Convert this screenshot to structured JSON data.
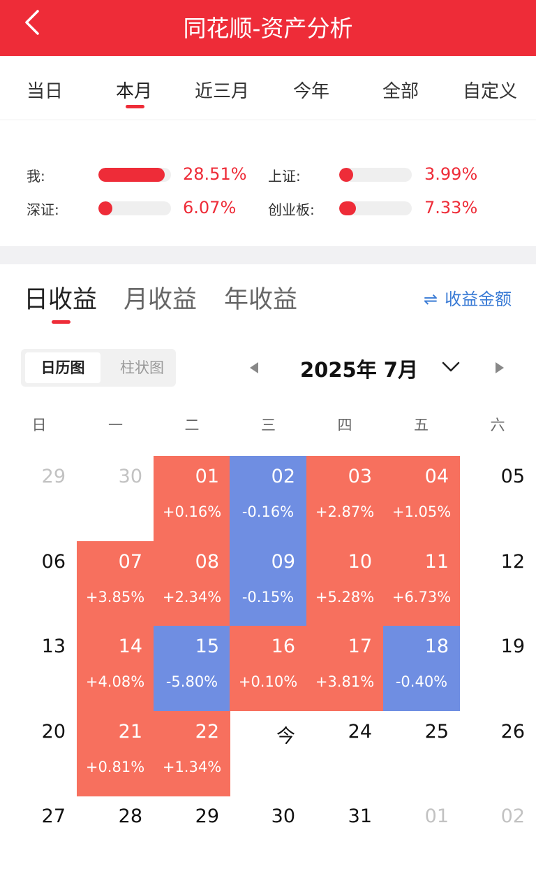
{
  "header": {
    "title": "同花顺-资产分析"
  },
  "period_tabs": [
    "当日",
    "本月",
    "近三月",
    "今年",
    "全部",
    "自定义"
  ],
  "comparison": {
    "me": {
      "label": "我:",
      "value": "28.51%",
      "fraction": 0.95
    },
    "sh": {
      "label": "上证:",
      "value": "3.99%",
      "fraction": 0.13
    },
    "sz": {
      "label": "深证:",
      "value": "6.07%",
      "fraction": 0.2
    },
    "cyb": {
      "label": "创业板:",
      "value": "7.33%",
      "fraction": 0.24
    }
  },
  "return_tabs": [
    "日收益",
    "月收益",
    "年收益"
  ],
  "amount_toggle": {
    "icon": "swap-icon",
    "label": "收益金额"
  },
  "view_toggle": {
    "calendar": "日历图",
    "bar": "柱状图"
  },
  "month": {
    "label": "2025年 7月"
  },
  "weekdays": [
    "日",
    "一",
    "二",
    "三",
    "四",
    "五",
    "六"
  ],
  "colors": {
    "brand": "#ee2c38",
    "gain": "#f7705e",
    "loss": "#6f8ee2"
  },
  "calendar": [
    [
      {
        "day": "29",
        "pct": "",
        "state": "other"
      },
      {
        "day": "30",
        "pct": "",
        "state": "other"
      },
      {
        "day": "01",
        "pct": "+0.16%",
        "state": "up"
      },
      {
        "day": "02",
        "pct": "-0.16%",
        "state": "down"
      },
      {
        "day": "03",
        "pct": "+2.87%",
        "state": "up"
      },
      {
        "day": "04",
        "pct": "+1.05%",
        "state": "up"
      },
      {
        "day": "05",
        "pct": "",
        "state": "plain"
      }
    ],
    [
      {
        "day": "06",
        "pct": "",
        "state": "plain"
      },
      {
        "day": "07",
        "pct": "+3.85%",
        "state": "up"
      },
      {
        "day": "08",
        "pct": "+2.34%",
        "state": "up"
      },
      {
        "day": "09",
        "pct": "-0.15%",
        "state": "down"
      },
      {
        "day": "10",
        "pct": "+5.28%",
        "state": "up"
      },
      {
        "day": "11",
        "pct": "+6.73%",
        "state": "up"
      },
      {
        "day": "12",
        "pct": "",
        "state": "plain"
      }
    ],
    [
      {
        "day": "13",
        "pct": "",
        "state": "plain"
      },
      {
        "day": "14",
        "pct": "+4.08%",
        "state": "up"
      },
      {
        "day": "15",
        "pct": "-5.80%",
        "state": "down"
      },
      {
        "day": "16",
        "pct": "+0.10%",
        "state": "up"
      },
      {
        "day": "17",
        "pct": "+3.81%",
        "state": "up"
      },
      {
        "day": "18",
        "pct": "-0.40%",
        "state": "down"
      },
      {
        "day": "19",
        "pct": "",
        "state": "plain"
      }
    ],
    [
      {
        "day": "20",
        "pct": "",
        "state": "plain"
      },
      {
        "day": "21",
        "pct": "+0.81%",
        "state": "up"
      },
      {
        "day": "22",
        "pct": "+1.34%",
        "state": "up"
      },
      {
        "day": "今",
        "pct": "",
        "state": "plain"
      },
      {
        "day": "24",
        "pct": "",
        "state": "plain"
      },
      {
        "day": "25",
        "pct": "",
        "state": "plain"
      },
      {
        "day": "26",
        "pct": "",
        "state": "plain"
      }
    ],
    [
      {
        "day": "27",
        "pct": "",
        "state": "plain"
      },
      {
        "day": "28",
        "pct": "",
        "state": "plain"
      },
      {
        "day": "29",
        "pct": "",
        "state": "plain"
      },
      {
        "day": "30",
        "pct": "",
        "state": "plain"
      },
      {
        "day": "31",
        "pct": "",
        "state": "plain"
      },
      {
        "day": "01",
        "pct": "",
        "state": "other"
      },
      {
        "day": "02",
        "pct": "",
        "state": "other"
      }
    ]
  ]
}
